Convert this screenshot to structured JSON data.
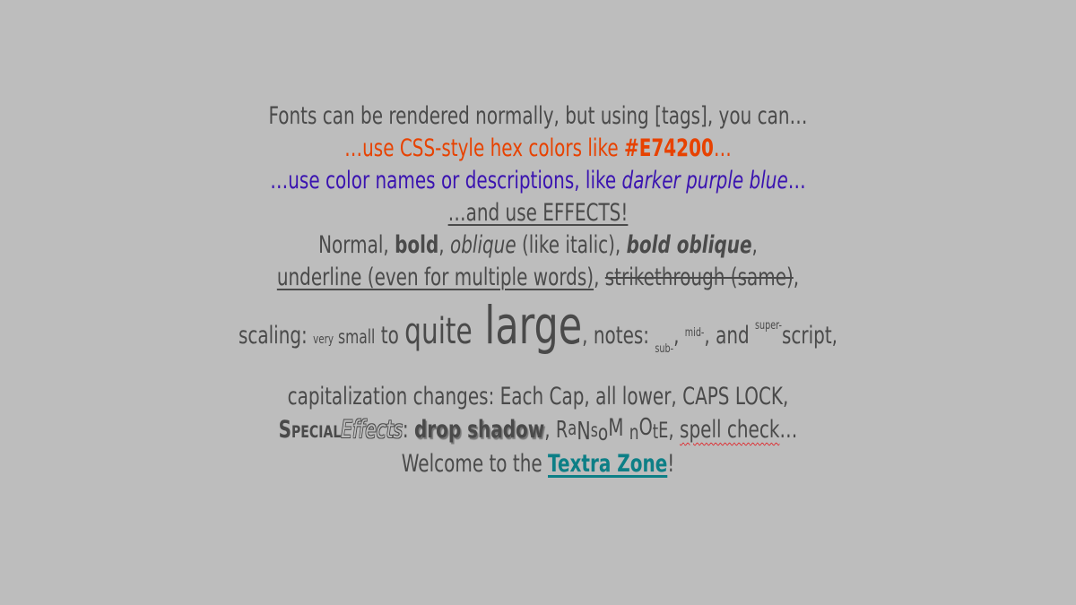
{
  "lines": {
    "l1": "Fonts can be rendered normally, but using [tags], you can…",
    "l2a": "…use CSS-style hex colors like ",
    "l2b": "#E74200",
    "l2c": "…",
    "l3a": "…use color names or descriptions, like ",
    "l3b": "darker purple blue",
    "l3c": "…",
    "l4": "…and use EFFECTS!",
    "l5a": "Normal, ",
    "l5b": "bold",
    "l5c": ", ",
    "l5d": "oblique",
    "l5e": " (like italic), ",
    "l5f": "bold oblique",
    "l5g": ",",
    "l6a": "underline (even for multiple words)",
    "l6b": ", ",
    "l6c": "strikethrough (same)",
    "l6d": ",",
    "l7a": "scaling: ",
    "l7b": "very",
    "l7c": " small",
    "l7d": " to ",
    "l7e": "quite",
    "l7f": " large",
    "l7g": ", notes: ",
    "l7h": "sub-",
    "l7i": ", ",
    "l7j": "mid-",
    "l7k": ", and ",
    "l7l": "super-",
    "l7m": "script,",
    "l8": "capitalization changes: Each Cap, all lower, CAPS LOCK,",
    "l9a": "Special",
    "l9b": "Effects",
    "l9c": ": ",
    "l9d": "drop shadow",
    "l9e": ", ",
    "l9f": "RaNsoM nOtE",
    "l9g": ", ",
    "l9h": "spell check",
    "l9i": "…",
    "l10a": "Welcome to the ",
    "l10b": "Textra Zone",
    "l10c": "!"
  },
  "colors": {
    "background": "#bdbdbd",
    "text": "#4a4a4a",
    "orange": "#E74200",
    "purple": "#3a13b0",
    "teal": "#0d7f86"
  }
}
